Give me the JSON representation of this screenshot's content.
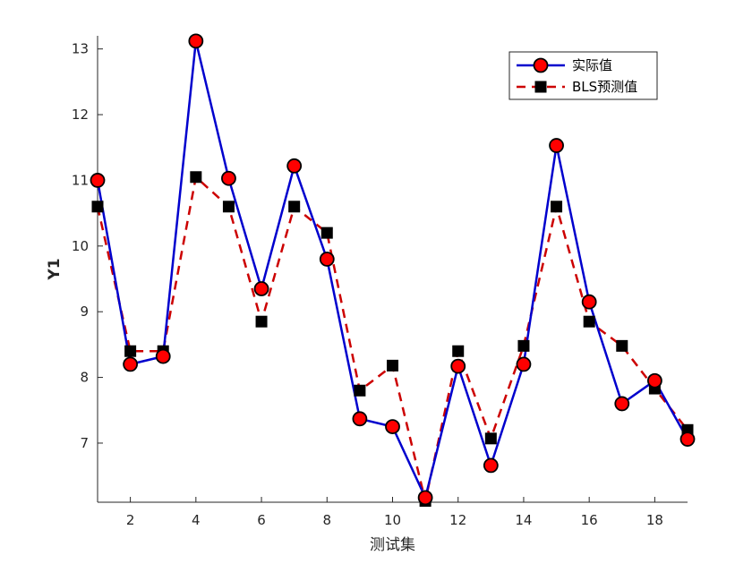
{
  "chart_data": {
    "type": "line",
    "x": [
      1,
      2,
      3,
      4,
      5,
      6,
      7,
      8,
      9,
      10,
      11,
      12,
      13,
      14,
      15,
      16,
      17,
      18,
      19
    ],
    "series": [
      {
        "name": "实际值",
        "values": [
          11.0,
          8.2,
          8.32,
          13.12,
          11.03,
          9.35,
          11.22,
          9.8,
          7.37,
          7.25,
          6.17,
          8.17,
          6.66,
          8.2,
          11.53,
          9.15,
          7.6,
          7.95,
          7.06
        ],
        "color": "#0000CD",
        "marker": "circle",
        "marker_fill": "#FF0000",
        "line_style": "solid"
      },
      {
        "name": "BLS预测值",
        "values": [
          10.6,
          8.4,
          8.4,
          11.05,
          10.6,
          8.85,
          10.6,
          10.2,
          7.8,
          8.18,
          6.12,
          8.4,
          7.07,
          8.48,
          10.6,
          8.85,
          8.48,
          7.83,
          7.2
        ],
        "color": "#CC0000",
        "marker": "square",
        "marker_fill": "#000000",
        "line_style": "dashed"
      }
    ],
    "xlabel": "测试集",
    "ylabel": "Y1",
    "xlim": [
      1,
      19
    ],
    "ylim": [
      6.1,
      13.2
    ],
    "xticks": [
      2,
      4,
      6,
      8,
      10,
      12,
      14,
      16,
      18
    ],
    "yticks": [
      7,
      8,
      9,
      10,
      11,
      12,
      13
    ],
    "grid": false,
    "legend_position": "top-right"
  }
}
